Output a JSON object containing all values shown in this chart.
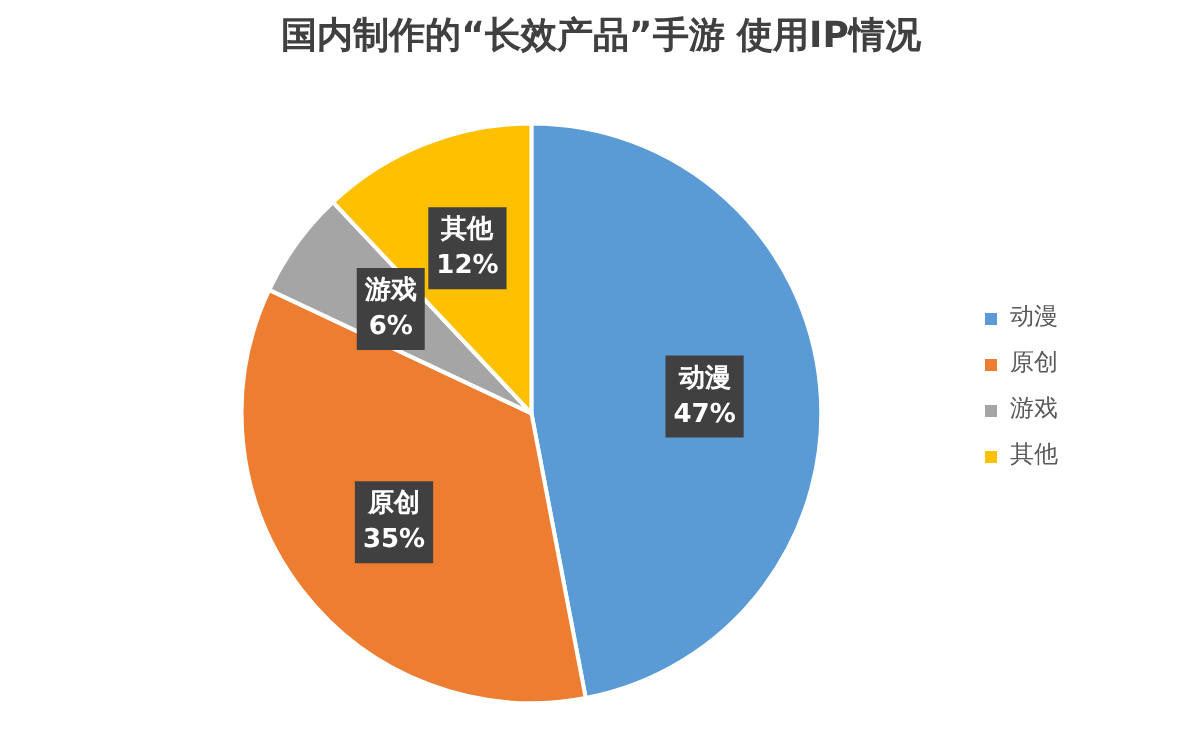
{
  "chart_data": {
    "type": "pie",
    "title": "国内制作的“长效产品”手游 使用IP情况",
    "categories": [
      "动漫",
      "原创",
      "游戏",
      "其他"
    ],
    "values": [
      47,
      35,
      6,
      12
    ],
    "colors": [
      "#5b9bd5",
      "#ed7d31",
      "#a5a5a5",
      "#ffc000"
    ],
    "value_labels": [
      "47%",
      "35%",
      "6%",
      "12%"
    ],
    "legend": "right"
  }
}
